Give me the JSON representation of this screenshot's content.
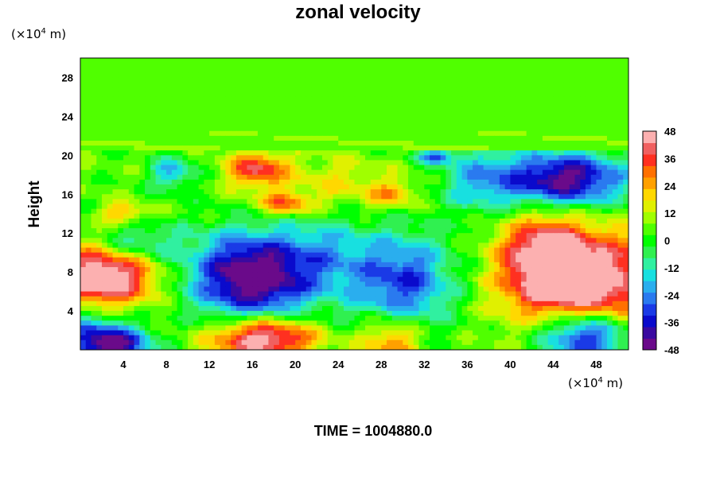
{
  "chart_data": {
    "type": "heatmap",
    "title": "zonal velocity",
    "ylabel": "Height",
    "x_unit": "(×10",
    "y_unit": "(×10",
    "unit_exponent": "4",
    "unit_suffix": " m)",
    "footer": "TIME = 1004880.0",
    "xlim": [
      0,
      51
    ],
    "ylim": [
      0,
      30
    ],
    "x_ticks": [
      "4",
      "8",
      "12",
      "16",
      "20",
      "24",
      "28",
      "32",
      "36",
      "40",
      "44",
      "48"
    ],
    "y_ticks": [
      "4",
      "8",
      "12",
      "16",
      "20",
      "24",
      "28"
    ],
    "colorbar": {
      "min": -48,
      "max": 48,
      "step": 6,
      "tick_labels": [
        "48",
        "36",
        "24",
        "12",
        "0",
        "-12",
        "-24",
        "-36",
        "-48"
      ],
      "colors": [
        "#6a0a8a",
        "#3a0aa0",
        "#0a0acc",
        "#1a3ae6",
        "#2a7aef",
        "#2aaeee",
        "#18e0e0",
        "#30f0a0",
        "#30f050",
        "#00ff00",
        "#50ff00",
        "#a0ff00",
        "#e0f000",
        "#ffd800",
        "#ffa000",
        "#ff7000",
        "#ff3020",
        "#f06060",
        "#fcb0b0"
      ]
    },
    "field": {
      "background": 5,
      "features": [
        {
          "x": 16,
          "y": 7.5,
          "sx": 4.0,
          "sy": 3.2,
          "v": -58
        },
        {
          "x": 47,
          "y": 1.5,
          "sx": 3.0,
          "sy": 1.8,
          "v": -50
        },
        {
          "x": 3,
          "y": 0.5,
          "sx": 2.5,
          "sy": 1.2,
          "v": -40
        },
        {
          "x": 45,
          "y": 17.5,
          "sx": 4.2,
          "sy": 2.0,
          "v": -52
        },
        {
          "x": 30,
          "y": 7.0,
          "sx": 3.5,
          "sy": 3.5,
          "v": -36
        },
        {
          "x": 33,
          "y": 19.8,
          "sx": 1.2,
          "sy": 0.5,
          "v": -30
        },
        {
          "x": 8.5,
          "y": 18.2,
          "sx": 1.5,
          "sy": 1.2,
          "v": -24
        },
        {
          "x": 37,
          "y": 17.5,
          "sx": 2.5,
          "sy": 2.5,
          "v": -20
        },
        {
          "x": 23,
          "y": 10,
          "sx": 3.0,
          "sy": 3.0,
          "v": -16
        },
        {
          "x": 5,
          "y": 11,
          "sx": 3.0,
          "sy": 1.5,
          "v": -22
        },
        {
          "x": 1,
          "y": 2,
          "sx": 3.0,
          "sy": 2.0,
          "v": -25
        },
        {
          "x": 47,
          "y": 7.0,
          "sx": 5.0,
          "sy": 3.6,
          "v": 50
        },
        {
          "x": 43,
          "y": 10,
          "sx": 2.6,
          "sy": 3.0,
          "v": 30
        },
        {
          "x": 2,
          "y": 7.5,
          "sx": 3.4,
          "sy": 2.4,
          "v": 52
        },
        {
          "x": 17,
          "y": 1.2,
          "sx": 3.4,
          "sy": 1.6,
          "v": 50
        },
        {
          "x": 29,
          "y": 1.0,
          "sx": 2.0,
          "sy": 1.8,
          "v": 28
        },
        {
          "x": 16.5,
          "y": 18.5,
          "sx": 2.0,
          "sy": 1.3,
          "v": 34
        },
        {
          "x": 19,
          "y": 15,
          "sx": 1.8,
          "sy": 0.9,
          "v": 28
        },
        {
          "x": 29,
          "y": 16,
          "sx": 1.6,
          "sy": 1.0,
          "v": 20
        },
        {
          "x": 4,
          "y": 14,
          "sx": 1.5,
          "sy": 0.8,
          "v": 20
        },
        {
          "x": 24,
          "y": 17,
          "sx": 3.0,
          "sy": 2.0,
          "v": 12
        }
      ]
    }
  }
}
